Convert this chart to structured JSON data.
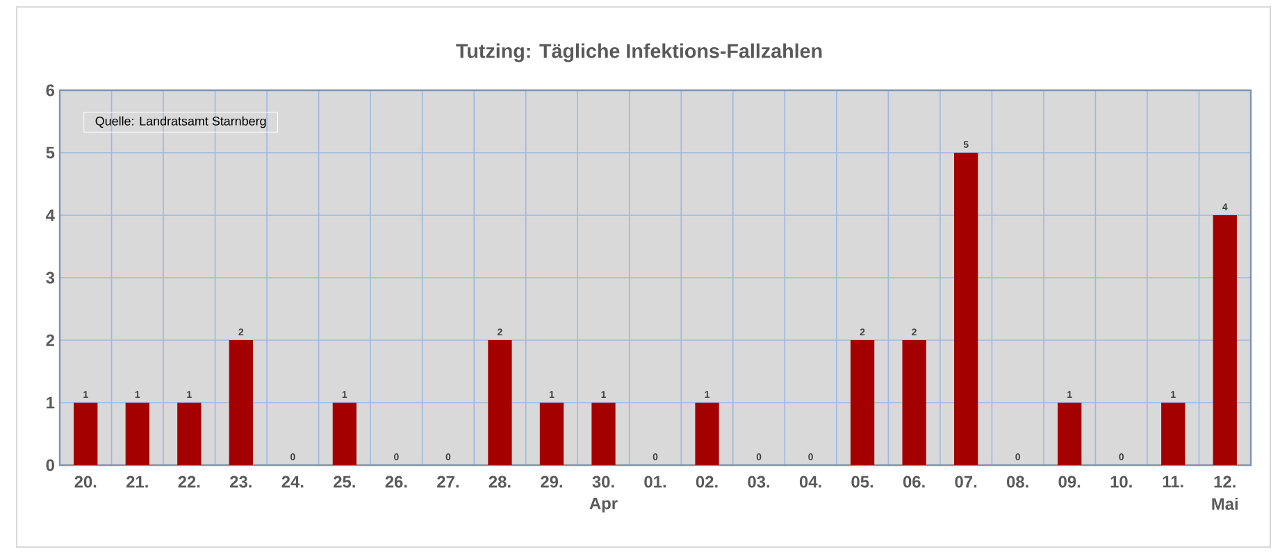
{
  "chart_data": {
    "type": "bar",
    "title": "Tutzing: Tägliche Infektions-Fallzahlen",
    "categories": [
      "20.",
      "21.",
      "22.",
      "23.",
      "24.",
      "25.",
      "26.",
      "27.",
      "28.",
      "29.",
      "30.",
      "01.",
      "02.",
      "03.",
      "04.",
      "05.",
      "06.",
      "07.",
      "08.",
      "09.",
      "10.",
      "11.",
      "12."
    ],
    "values": [
      1,
      1,
      1,
      2,
      0,
      1,
      0,
      0,
      2,
      1,
      1,
      0,
      1,
      0,
      0,
      2,
      2,
      5,
      0,
      1,
      0,
      1,
      4
    ],
    "color": "#a50000",
    "ylim": [
      0,
      6
    ],
    "yticks": [
      0,
      1,
      2,
      3,
      4,
      5,
      6
    ],
    "grid": true,
    "data_labels": true,
    "annotations": [
      "Quelle: Landratsamt Starnberg",
      "Apr",
      "Mai"
    ]
  }
}
